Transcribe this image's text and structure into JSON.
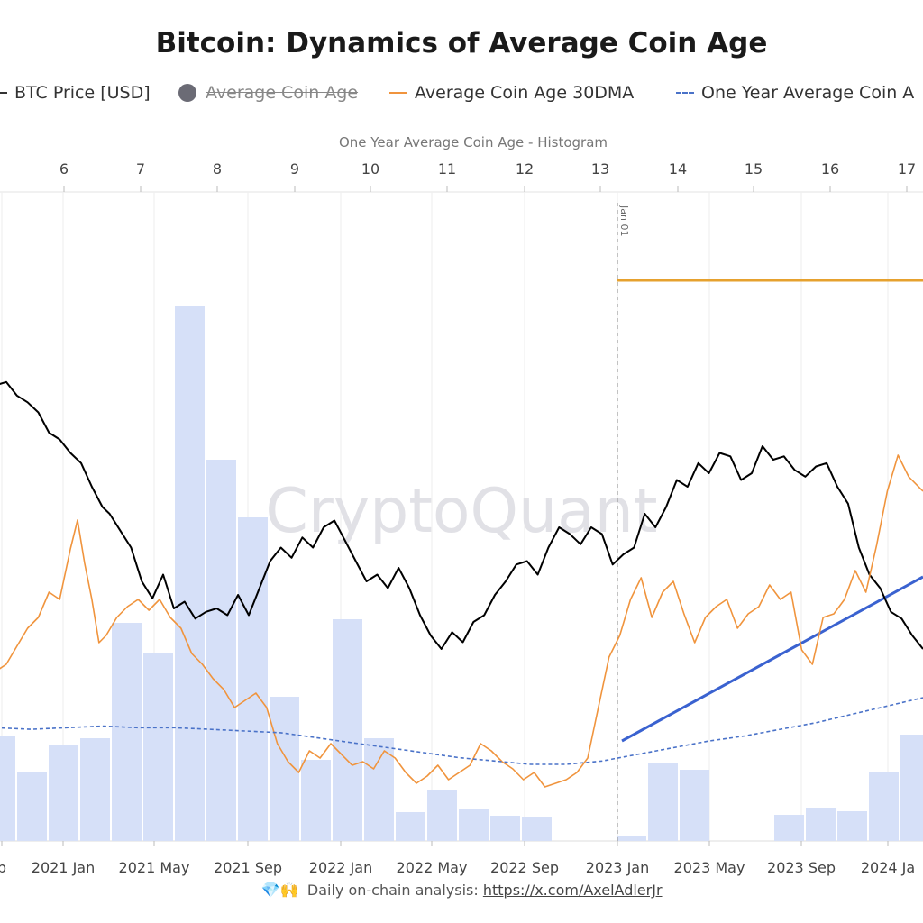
{
  "title": "Bitcoin: Dynamics of Average Coin Age",
  "legend": [
    {
      "label": "BTC Price [USD]",
      "swatch": "line",
      "color": "#000000",
      "hidden": false
    },
    {
      "label": "Average Coin Age",
      "swatch": "dot",
      "color": "#6b6b75",
      "hidden": true
    },
    {
      "label": "Average Coin Age 30DMA",
      "swatch": "line",
      "color": "#f0943d",
      "hidden": false
    },
    {
      "label": "One Year Average Coin A",
      "swatch": "dashed",
      "color": "#4a72c8",
      "hidden": false
    }
  ],
  "histogram_axis_label": "One Year Average Coin Age - Histogram",
  "watermark": "CryptoQuant",
  "annotation": {
    "label": "Jan 01",
    "date": "2023-01-01"
  },
  "footer": {
    "emoji": "💎🙌",
    "text": "Daily on-chain analysis:",
    "link": "https://x.com/AxelAdlerJr"
  },
  "chart_data": {
    "type": "line",
    "title": "Bitcoin: Dynamics of Average Coin Age",
    "x_ticks": [
      "p",
      "2021 Jan",
      "2021 May",
      "2021 Sep",
      "2022 Jan",
      "2022 May",
      "2022 Sep",
      "2023 Jan",
      "2023 May",
      "2023 Sep",
      "2024 Ja"
    ],
    "histogram": {
      "name": "One Year Average Coin Age - Histogram",
      "bin_ticks": [
        "6",
        "7",
        "8",
        "9",
        "10",
        "11",
        "12",
        "13",
        "14",
        "15",
        "16",
        "17"
      ],
      "bin_start": 5,
      "bin_width": 0.41,
      "counts": [
        117,
        76,
        106,
        114,
        242,
        208,
        594,
        423,
        359,
        160,
        90,
        246,
        114,
        32,
        56,
        35,
        28,
        27,
        0,
        0,
        5,
        86,
        79,
        0,
        0,
        29,
        37,
        33,
        77,
        118,
        74
      ],
      "color": "#d6e0f8"
    },
    "series": [
      {
        "name": "BTC Price [USD]",
        "color": "#000000",
        "x_start": "2020-09",
        "points": [
          [
            0,
            0.78
          ],
          [
            0.3,
            0.79
          ],
          [
            0.6,
            0.75
          ],
          [
            0.9,
            0.73
          ],
          [
            1.2,
            0.7
          ],
          [
            1.5,
            0.64
          ],
          [
            1.8,
            0.62
          ],
          [
            2.1,
            0.58
          ],
          [
            2.4,
            0.55
          ],
          [
            2.7,
            0.48
          ],
          [
            3.0,
            0.42
          ],
          [
            3.2,
            0.4
          ],
          [
            3.5,
            0.35
          ],
          [
            3.8,
            0.3
          ],
          [
            4.1,
            0.2
          ],
          [
            4.4,
            0.15
          ],
          [
            4.7,
            0.22
          ],
          [
            5.0,
            0.12
          ],
          [
            5.3,
            0.14
          ],
          [
            5.6,
            0.09
          ],
          [
            5.9,
            0.11
          ],
          [
            6.2,
            0.12
          ],
          [
            6.5,
            0.1
          ],
          [
            6.8,
            0.16
          ],
          [
            7.1,
            0.1
          ],
          [
            7.4,
            0.18
          ],
          [
            7.7,
            0.26
          ],
          [
            8.0,
            0.3
          ],
          [
            8.3,
            0.27
          ],
          [
            8.6,
            0.33
          ],
          [
            8.9,
            0.3
          ],
          [
            9.2,
            0.36
          ],
          [
            9.5,
            0.38
          ],
          [
            9.8,
            0.32
          ],
          [
            10.1,
            0.26
          ],
          [
            10.4,
            0.2
          ],
          [
            10.7,
            0.22
          ],
          [
            11.0,
            0.18
          ],
          [
            11.3,
            0.24
          ],
          [
            11.6,
            0.18
          ],
          [
            11.9,
            0.1
          ],
          [
            12.2,
            0.04
          ],
          [
            12.5,
            0.0
          ],
          [
            12.8,
            0.05
          ],
          [
            13.1,
            0.02
          ],
          [
            13.4,
            0.08
          ],
          [
            13.7,
            0.1
          ],
          [
            14.0,
            0.16
          ],
          [
            14.3,
            0.2
          ],
          [
            14.6,
            0.25
          ],
          [
            14.9,
            0.26
          ],
          [
            15.2,
            0.22
          ],
          [
            15.5,
            0.3
          ],
          [
            15.8,
            0.36
          ],
          [
            16.1,
            0.34
          ],
          [
            16.4,
            0.31
          ],
          [
            16.7,
            0.36
          ],
          [
            17.0,
            0.34
          ],
          [
            17.3,
            0.25
          ],
          [
            17.6,
            0.28
          ],
          [
            17.9,
            0.3
          ],
          [
            18.2,
            0.4
          ],
          [
            18.5,
            0.36
          ],
          [
            18.8,
            0.42
          ],
          [
            19.1,
            0.5
          ],
          [
            19.4,
            0.48
          ],
          [
            19.7,
            0.55
          ],
          [
            20.0,
            0.52
          ],
          [
            20.3,
            0.58
          ],
          [
            20.6,
            0.57
          ],
          [
            20.9,
            0.5
          ],
          [
            21.2,
            0.52
          ],
          [
            21.5,
            0.6
          ],
          [
            21.8,
            0.56
          ],
          [
            22.1,
            0.57
          ],
          [
            22.4,
            0.53
          ],
          [
            22.7,
            0.51
          ],
          [
            23.0,
            0.54
          ],
          [
            23.3,
            0.55
          ],
          [
            23.6,
            0.48
          ],
          [
            23.9,
            0.43
          ],
          [
            24.2,
            0.3
          ],
          [
            24.5,
            0.22
          ],
          [
            24.8,
            0.18
          ],
          [
            25.1,
            0.11
          ],
          [
            25.4,
            0.09
          ],
          [
            25.7,
            0.04
          ],
          [
            26.0,
            0.0
          ]
        ],
        "value_scale": "normalized 0-1 (no price axis shown)"
      },
      {
        "name": "Average Coin Age 30DMA",
        "color": "#f0943d",
        "points": [
          [
            0,
            0.4
          ],
          [
            0.3,
            0.42
          ],
          [
            0.6,
            0.47
          ],
          [
            0.9,
            0.52
          ],
          [
            1.2,
            0.55
          ],
          [
            1.5,
            0.62
          ],
          [
            1.8,
            0.6
          ],
          [
            2.1,
            0.74
          ],
          [
            2.3,
            0.82
          ],
          [
            2.5,
            0.7
          ],
          [
            2.7,
            0.6
          ],
          [
            2.9,
            0.48
          ],
          [
            3.1,
            0.5
          ],
          [
            3.4,
            0.55
          ],
          [
            3.7,
            0.58
          ],
          [
            4.0,
            0.6
          ],
          [
            4.3,
            0.57
          ],
          [
            4.6,
            0.6
          ],
          [
            4.9,
            0.55
          ],
          [
            5.2,
            0.52
          ],
          [
            5.5,
            0.45
          ],
          [
            5.8,
            0.42
          ],
          [
            6.1,
            0.38
          ],
          [
            6.4,
            0.35
          ],
          [
            6.7,
            0.3
          ],
          [
            7.0,
            0.32
          ],
          [
            7.3,
            0.34
          ],
          [
            7.6,
            0.3
          ],
          [
            7.9,
            0.2
          ],
          [
            8.2,
            0.15
          ],
          [
            8.5,
            0.12
          ],
          [
            8.8,
            0.18
          ],
          [
            9.1,
            0.16
          ],
          [
            9.4,
            0.2
          ],
          [
            9.7,
            0.17
          ],
          [
            10.0,
            0.14
          ],
          [
            10.3,
            0.15
          ],
          [
            10.6,
            0.13
          ],
          [
            10.9,
            0.18
          ],
          [
            11.2,
            0.16
          ],
          [
            11.5,
            0.12
          ],
          [
            11.8,
            0.09
          ],
          [
            12.1,
            0.11
          ],
          [
            12.4,
            0.14
          ],
          [
            12.7,
            0.1
          ],
          [
            13.0,
            0.12
          ],
          [
            13.3,
            0.14
          ],
          [
            13.6,
            0.2
          ],
          [
            13.9,
            0.18
          ],
          [
            14.2,
            0.15
          ],
          [
            14.5,
            0.13
          ],
          [
            14.8,
            0.1
          ],
          [
            15.1,
            0.12
          ],
          [
            15.4,
            0.08
          ],
          [
            15.7,
            0.09
          ],
          [
            16.0,
            0.1
          ],
          [
            16.3,
            0.12
          ],
          [
            16.6,
            0.16
          ],
          [
            16.9,
            0.3
          ],
          [
            17.2,
            0.44
          ],
          [
            17.5,
            0.5
          ],
          [
            17.8,
            0.6
          ],
          [
            18.1,
            0.66
          ],
          [
            18.4,
            0.55
          ],
          [
            18.7,
            0.62
          ],
          [
            19.0,
            0.65
          ],
          [
            19.3,
            0.56
          ],
          [
            19.6,
            0.48
          ],
          [
            19.9,
            0.55
          ],
          [
            20.2,
            0.58
          ],
          [
            20.5,
            0.6
          ],
          [
            20.8,
            0.52
          ],
          [
            21.1,
            0.56
          ],
          [
            21.4,
            0.58
          ],
          [
            21.7,
            0.64
          ],
          [
            22.0,
            0.6
          ],
          [
            22.3,
            0.62
          ],
          [
            22.6,
            0.46
          ],
          [
            22.9,
            0.42
          ],
          [
            23.2,
            0.55
          ],
          [
            23.5,
            0.56
          ],
          [
            23.8,
            0.6
          ],
          [
            24.1,
            0.68
          ],
          [
            24.4,
            0.62
          ],
          [
            24.7,
            0.75
          ],
          [
            25.0,
            0.9
          ],
          [
            25.3,
            1.0
          ],
          [
            25.6,
            0.94
          ],
          [
            26.0,
            0.9
          ]
        ],
        "value_scale": "normalized 0-1 (no axis shown)"
      },
      {
        "name": "One Year Average Coin Age",
        "color": "#4a72c8",
        "style": "dashed",
        "points": [
          [
            0,
            0.42
          ],
          [
            1,
            0.41
          ],
          [
            2,
            0.42
          ],
          [
            3,
            0.43
          ],
          [
            4,
            0.42
          ],
          [
            5,
            0.42
          ],
          [
            6,
            0.41
          ],
          [
            7,
            0.4
          ],
          [
            8,
            0.39
          ],
          [
            9,
            0.36
          ],
          [
            10,
            0.33
          ],
          [
            11,
            0.3
          ],
          [
            12,
            0.27
          ],
          [
            13,
            0.24
          ],
          [
            14,
            0.22
          ],
          [
            15,
            0.2
          ],
          [
            16,
            0.2
          ],
          [
            17,
            0.22
          ],
          [
            18,
            0.26
          ],
          [
            19,
            0.3
          ],
          [
            20,
            0.34
          ],
          [
            21,
            0.37
          ],
          [
            22,
            0.41
          ],
          [
            23,
            0.45
          ],
          [
            24,
            0.5
          ],
          [
            25,
            0.55
          ],
          [
            26,
            0.6
          ]
        ],
        "value_scale": "normalized 0-1 (no axis shown)"
      }
    ],
    "annotations": [
      {
        "type": "vertical-dashed-line",
        "label": "Jan 01",
        "x": "2023-01-01"
      },
      {
        "type": "horizontal-line",
        "color": "#e6a12e",
        "from": "2023-01-01"
      },
      {
        "type": "trendline",
        "color": "#3a62d0",
        "from": "2023-01",
        "to": "2024-01"
      }
    ],
    "grid": true,
    "legend_position": "top"
  }
}
